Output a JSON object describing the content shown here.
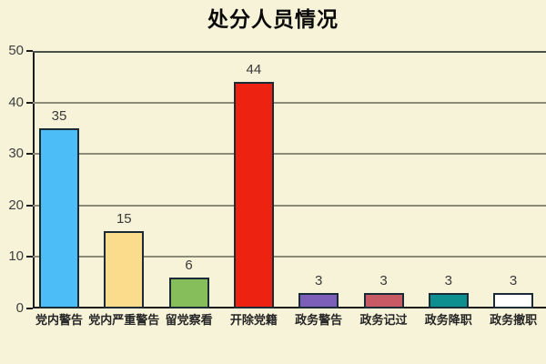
{
  "page": {
    "background_color": "#F7F3D8"
  },
  "chart_data": {
    "type": "bar",
    "title": "处分人员情况",
    "categories": [
      "党内警告",
      "党内严重警告",
      "留党察看",
      "开除党籍",
      "政务警告",
      "政务记过",
      "政务降职",
      "政务撤职"
    ],
    "values": [
      35,
      15,
      6,
      44,
      3,
      3,
      3,
      3
    ],
    "bar_colors": [
      "#4DBDF8",
      "#FADC8C",
      "#85BE5A",
      "#EE2211",
      "#7C5FB8",
      "#C85A66",
      "#0E8F8F",
      "#FFFFFF"
    ],
    "bar_border_color": "#1A2B36",
    "value_labels": [
      "35",
      "15",
      "6",
      "44",
      "3",
      "3",
      "3",
      "3"
    ],
    "xlabel": "",
    "ylabel": "",
    "ylim": [
      0,
      50
    ],
    "yticks": [
      "0",
      "10",
      "20",
      "30",
      "40",
      "50"
    ],
    "legend": "none",
    "grid": "horizontal",
    "grid_color": "#8B8B78",
    "top_border_color": "#4A5248",
    "axis_color": "#1C1C1C",
    "title_color": "#0A0A0A",
    "value_label_color": "#3A3A3A",
    "tick_label_color": "#3F3F3F",
    "category_label_color": "#262626"
  }
}
